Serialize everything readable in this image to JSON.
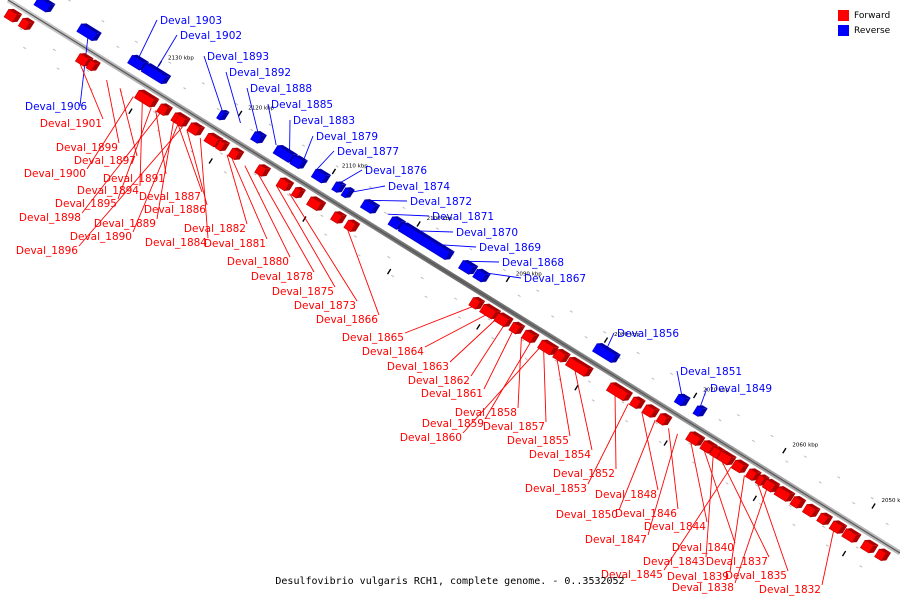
{
  "caption": "Desulfovibrio vulgaris RCH1, complete genome. - 0..3532052",
  "legend": [
    {
      "label": "Forward",
      "color": "#ff0000"
    },
    {
      "label": "Reverse",
      "color": "#0000ff"
    }
  ],
  "colors": {
    "forward": "#ff0000",
    "reverse": "#0000ff",
    "backbone": "#888888"
  },
  "ticks": [
    "2130 kbp",
    "2120 kbp",
    "2110 kbp",
    "2100 kbp",
    "2090 kbp",
    "2080 kbp",
    "2070 kbp",
    "2060 kbp",
    "2050 kbp"
  ],
  "reverse_genes": [
    "Deval_1903",
    "Deval_1902",
    "Deval_1893",
    "Deval_1892",
    "Deval_1888",
    "Deval_1885",
    "Deval_1883",
    "Deval_1879",
    "Deval_1877",
    "Deval_1876",
    "Deval_1874",
    "Deval_1872",
    "Deval_1871",
    "Deval_1870",
    "Deval_1869",
    "Deval_1868",
    "Deval_1867",
    "Deval_1856",
    "Deval_1851",
    "Deval_1849",
    "Deval_1906"
  ],
  "forward_genes": [
    "Deval_1901",
    "Deval_1899",
    "Deval_1897",
    "Deval_1900",
    "Deval_1891",
    "Deval_1894",
    "Deval_1887",
    "Deval_1895",
    "Deval_1886",
    "Deval_1898",
    "Deval_1889",
    "Deval_1890",
    "Deval_1896",
    "Deval_1884",
    "Deval_1882",
    "Deval_1881",
    "Deval_1880",
    "Deval_1878",
    "Deval_1875",
    "Deval_1873",
    "Deval_1866",
    "Deval_1865",
    "Deval_1864",
    "Deval_1863",
    "Deval_1862",
    "Deval_1861",
    "Deval_1858",
    "Deval_1859",
    "Deval_1857",
    "Deval_1860",
    "Deval_1855",
    "Deval_1854",
    "Deval_1852",
    "Deval_1853",
    "Deval_1848",
    "Deval_1850",
    "Deval_1846",
    "Deval_1844",
    "Deval_1847",
    "Deval_1840",
    "Deval_1843",
    "Deval_1837",
    "Deval_1845",
    "Deval_1839",
    "Deval_1835",
    "Deval_1838",
    "Deval_1832"
  ]
}
